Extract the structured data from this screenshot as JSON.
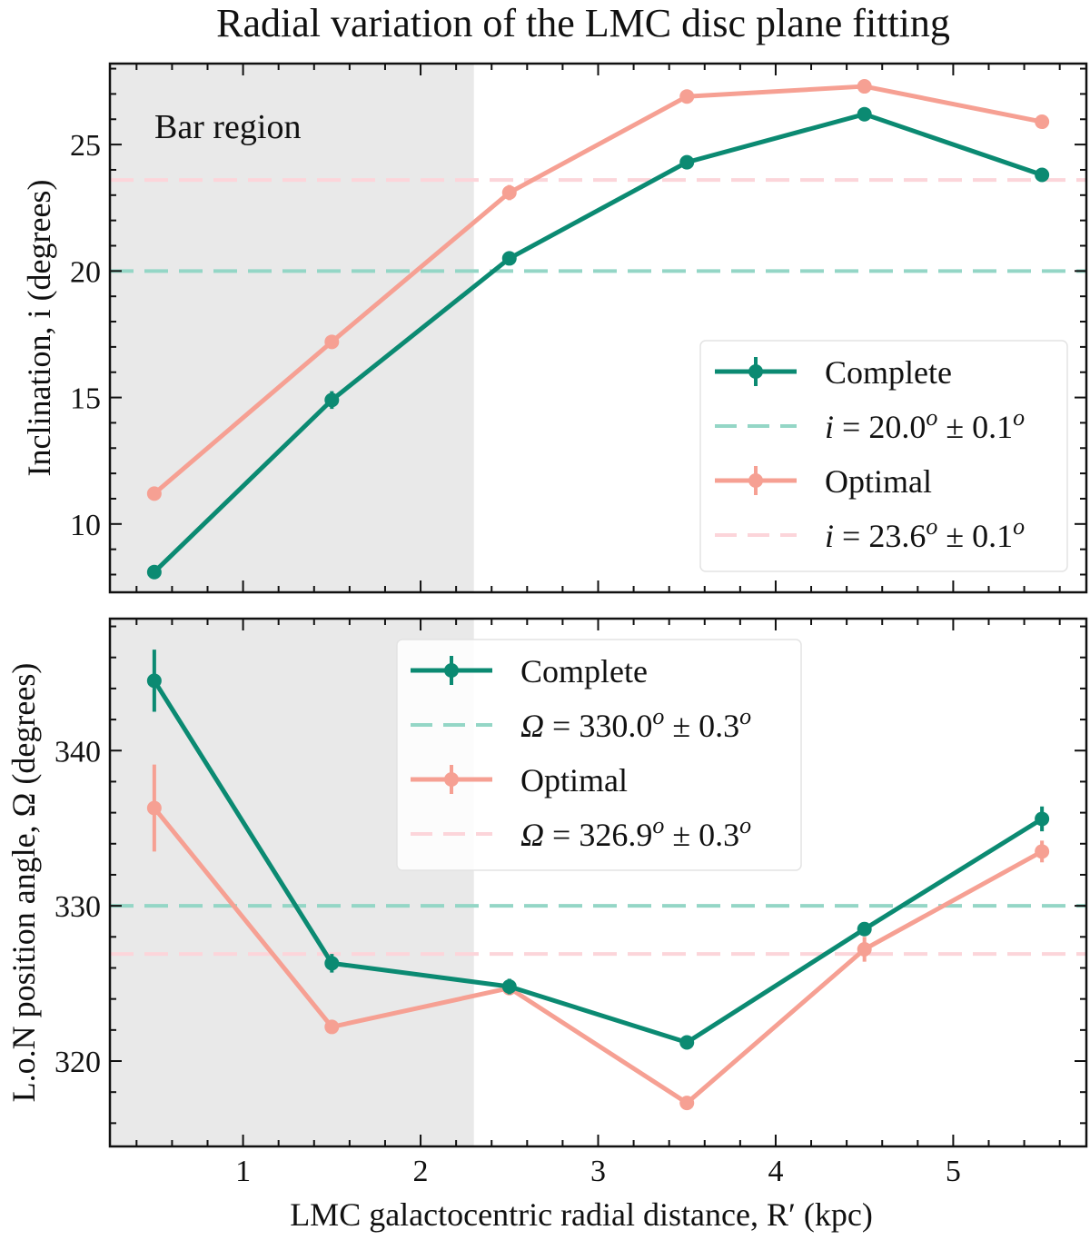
{
  "title": "Radial variation of the LMC disc plane fitting",
  "xlabel": "LMC galactocentric radial distance, R′ (kpc)",
  "colors": {
    "complete": "#0b8a72",
    "optimal": "#f6a093",
    "complete_ref": "#94d6c6",
    "optimal_ref": "#fcd5da",
    "bar_region": "#e9e9e9"
  },
  "chart_data": [
    {
      "type": "line",
      "ylabel": "Inclination, i (degrees)",
      "xlim": [
        0.25,
        5.75
      ],
      "ylim": [
        7.3,
        28.2
      ],
      "x_ticks": [
        1,
        2,
        3,
        4,
        5
      ],
      "y_ticks": [
        10,
        15,
        20,
        25
      ],
      "grid": false,
      "shaded_region": {
        "label": "Bar region",
        "x": [
          0.25,
          2.3
        ]
      },
      "legend_placement": "lower-right",
      "series": [
        {
          "name": "Complete",
          "x": [
            0.5,
            1.5,
            2.5,
            3.5,
            4.5,
            5.5
          ],
          "y": [
            8.1,
            14.9,
            20.5,
            24.3,
            26.2,
            23.8
          ],
          "yerr": [
            0.25,
            0.35,
            0.25,
            0.2,
            0.2,
            0.2
          ]
        },
        {
          "name": "Optimal",
          "x": [
            0.5,
            1.5,
            2.5,
            3.5,
            4.5,
            5.5
          ],
          "y": [
            11.2,
            17.2,
            23.1,
            26.9,
            27.3,
            25.9
          ],
          "yerr": [
            0.2,
            0.25,
            0.3,
            0.15,
            0.15,
            0.15
          ]
        }
      ],
      "reference_lines": [
        {
          "label": "i = 20.0° ± 0.1°",
          "label_main": "i",
          "label_value": " = 20.0",
          "label_pm": " ± 0.1",
          "y": 20.0
        },
        {
          "label": "i = 23.6° ± 0.1°",
          "label_main": "i",
          "label_value": " = 23.6",
          "label_pm": " ± 0.1",
          "y": 23.6
        }
      ]
    },
    {
      "type": "line",
      "ylabel": "L.o.N position angle, Ω (degrees)",
      "xlim": [
        0.25,
        5.75
      ],
      "ylim": [
        314.5,
        348.5
      ],
      "x_ticks": [
        1,
        2,
        3,
        4,
        5
      ],
      "y_ticks": [
        320,
        330,
        340
      ],
      "grid": false,
      "shaded_region": {
        "label": "",
        "x": [
          0.25,
          2.3
        ]
      },
      "legend_placement": "upper-center",
      "series": [
        {
          "name": "Complete",
          "x": [
            0.5,
            1.5,
            2.5,
            3.5,
            4.5,
            5.5
          ],
          "y": [
            344.5,
            326.3,
            324.8,
            321.2,
            328.5,
            335.6
          ],
          "yerr": [
            2.0,
            0.6,
            0.5,
            0.3,
            0.3,
            0.8
          ]
        },
        {
          "name": "Optimal",
          "x": [
            0.5,
            1.5,
            2.5,
            3.5,
            4.5,
            5.5
          ],
          "y": [
            336.3,
            322.2,
            324.7,
            317.3,
            327.2,
            333.5
          ],
          "yerr": [
            2.8,
            0.3,
            0.4,
            0.4,
            0.8,
            0.7
          ]
        }
      ],
      "reference_lines": [
        {
          "label": "Ω = 330.0° ± 0.3°",
          "label_main": "Ω",
          "label_value": " = 330.0",
          "label_pm": " ± 0.3",
          "y": 330.0
        },
        {
          "label": "Ω = 326.9° ± 0.3°",
          "label_main": "Ω",
          "label_value": " = 326.9",
          "label_pm": " ± 0.3",
          "y": 326.9
        }
      ]
    }
  ]
}
